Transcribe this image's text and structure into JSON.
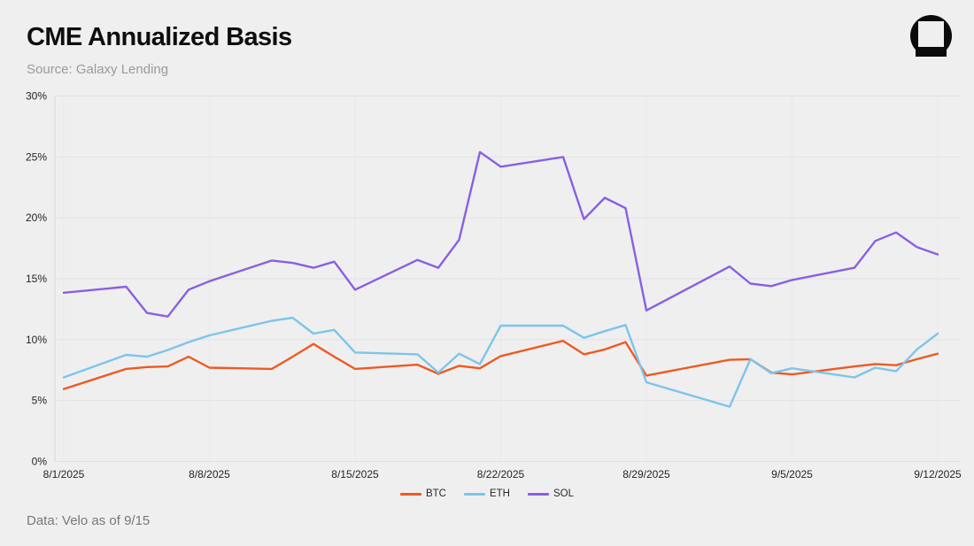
{
  "header": {
    "title": "CME Annualized Basis",
    "subtitle": "Source: Galaxy Lending"
  },
  "footer": {
    "note": "Data: Velo as of 9/15"
  },
  "logo": {
    "name": "galaxy-logo"
  },
  "colors": {
    "background": "#efeff0",
    "grid": "#e2e2e3",
    "grid_vertical": "#e9e9ea",
    "axis_line": "#d7d7d9",
    "axis_text": "#252528",
    "title_text": "#0e0e0f",
    "subtitle_text": "#9a9a9c",
    "footer_text": "#79797b"
  },
  "chart_data": {
    "type": "line",
    "title": "CME Annualized Basis",
    "xlabel": "",
    "ylabel": "",
    "ylim": [
      0,
      30
    ],
    "y_ticks": [
      0,
      5,
      10,
      15,
      20,
      25,
      30
    ],
    "y_tick_suffix": "%",
    "grid": true,
    "legend_position": "bottom-center",
    "x_tick_labels": [
      "8/1/2025",
      "8/8/2025",
      "8/15/2025",
      "8/22/2025",
      "8/29/2025",
      "9/5/2025",
      "9/12/2025"
    ],
    "x": [
      "8/1",
      "8/4",
      "8/5",
      "8/6",
      "8/7",
      "8/8",
      "8/11",
      "8/12",
      "8/13",
      "8/14",
      "8/15",
      "8/18",
      "8/19",
      "8/20",
      "8/21",
      "8/22",
      "8/25",
      "8/26",
      "8/27",
      "8/28",
      "8/29",
      "9/2",
      "9/3",
      "9/4",
      "9/5",
      "9/8",
      "9/9",
      "9/10",
      "9/11",
      "9/12"
    ],
    "series": [
      {
        "name": "BTC",
        "color": "#ee5a21",
        "values": [
          5.95,
          7.6,
          7.75,
          7.8,
          8.6,
          7.7,
          7.6,
          8.6,
          9.65,
          8.6,
          7.6,
          7.95,
          7.2,
          7.85,
          7.65,
          8.65,
          9.9,
          8.8,
          9.2,
          9.8,
          7.05,
          8.35,
          8.4,
          7.3,
          7.15,
          7.8,
          8.0,
          7.9,
          8.4,
          8.85
        ]
      },
      {
        "name": "ETH",
        "color": "#7ec4ea",
        "values": [
          6.9,
          8.75,
          8.6,
          9.15,
          9.8,
          10.35,
          11.55,
          11.8,
          10.5,
          10.8,
          8.95,
          8.8,
          7.3,
          8.85,
          8.0,
          11.15,
          11.15,
          10.15,
          10.7,
          11.2,
          6.5,
          4.5,
          8.4,
          7.25,
          7.65,
          6.9,
          7.7,
          7.4,
          9.2,
          10.5
        ]
      },
      {
        "name": "SOL",
        "color": "#8a5fe2",
        "values": [
          13.85,
          14.35,
          12.2,
          11.9,
          14.1,
          14.8,
          16.5,
          16.3,
          15.9,
          16.4,
          14.1,
          16.55,
          15.9,
          18.2,
          25.4,
          24.2,
          25.0,
          19.9,
          21.65,
          20.8,
          12.4,
          16.0,
          14.6,
          14.4,
          14.9,
          15.9,
          18.1,
          18.8,
          17.6,
          17.0
        ]
      }
    ]
  }
}
